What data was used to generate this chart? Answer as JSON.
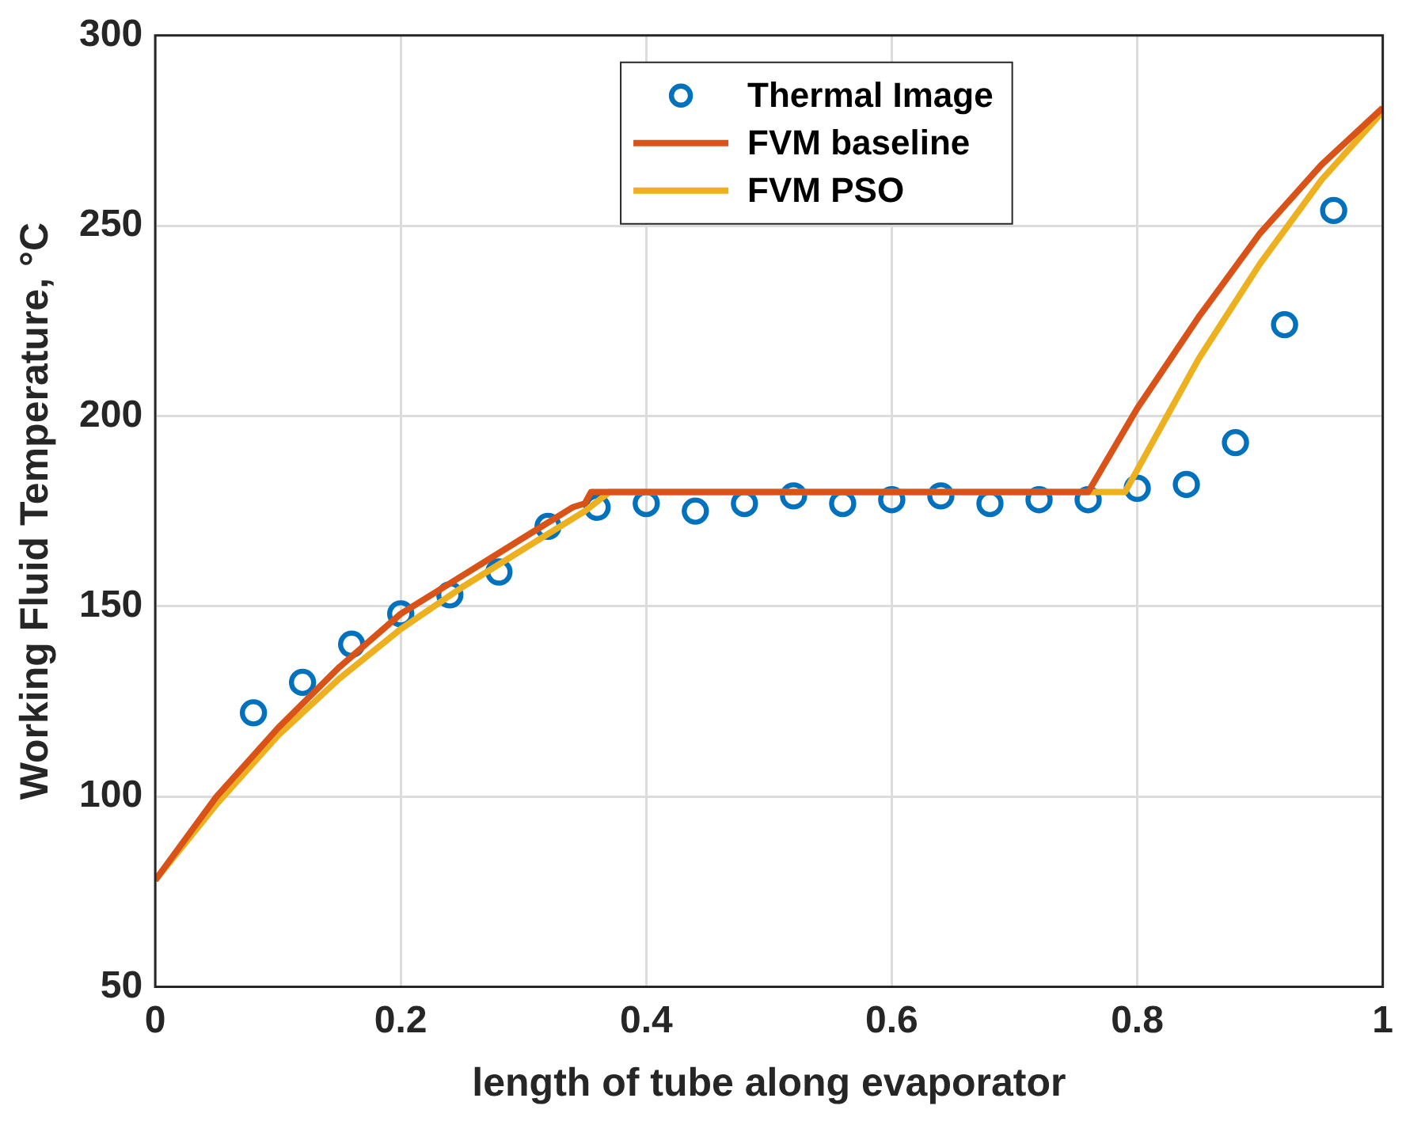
{
  "chart_data": {
    "type": "line",
    "xlabel": "length of tube along evaporator",
    "ylabel": "Working Fluid Temperature, °C",
    "xlim": [
      0,
      1
    ],
    "xticks": [
      0,
      0.2,
      0.4,
      0.6,
      0.8,
      1
    ],
    "ylim": [
      50,
      300
    ],
    "yticks": [
      50,
      100,
      150,
      200,
      250,
      300
    ],
    "grid": true,
    "legend": "top",
    "series": [
      {
        "name": "Thermal Image",
        "type": "scatter",
        "marker": "circle",
        "color": "#0072bd",
        "x": [
          0.08,
          0.12,
          0.16,
          0.2,
          0.24,
          0.28,
          0.32,
          0.36,
          0.4,
          0.44,
          0.48,
          0.52,
          0.56,
          0.6,
          0.64,
          0.68,
          0.72,
          0.76,
          0.8,
          0.84,
          0.88,
          0.92,
          0.96
        ],
        "values": [
          122,
          130,
          140,
          148,
          153,
          159,
          171,
          176,
          177,
          175,
          177,
          179,
          177,
          178,
          179,
          177,
          178,
          178,
          181,
          182,
          193,
          224,
          254
        ]
      },
      {
        "name": "FVM baseline",
        "color": "#d95319",
        "x": [
          0,
          0.05,
          0.1,
          0.15,
          0.2,
          0.25,
          0.3,
          0.34,
          0.35,
          0.355,
          0.76,
          0.8,
          0.85,
          0.9,
          0.95,
          1
        ],
        "values": [
          78,
          100,
          118,
          134,
          148,
          158,
          168,
          176,
          177,
          180,
          180,
          202,
          226,
          248,
          266,
          281
        ]
      },
      {
        "name": "FVM PSO",
        "color": "#edb120",
        "x": [
          0,
          0.05,
          0.1,
          0.15,
          0.2,
          0.25,
          0.3,
          0.35,
          0.37,
          0.79,
          0.85,
          0.9,
          0.95,
          1
        ],
        "values": [
          78,
          98,
          116,
          131,
          144,
          155,
          165,
          175,
          180,
          180,
          215,
          240,
          262,
          280
        ]
      }
    ]
  }
}
